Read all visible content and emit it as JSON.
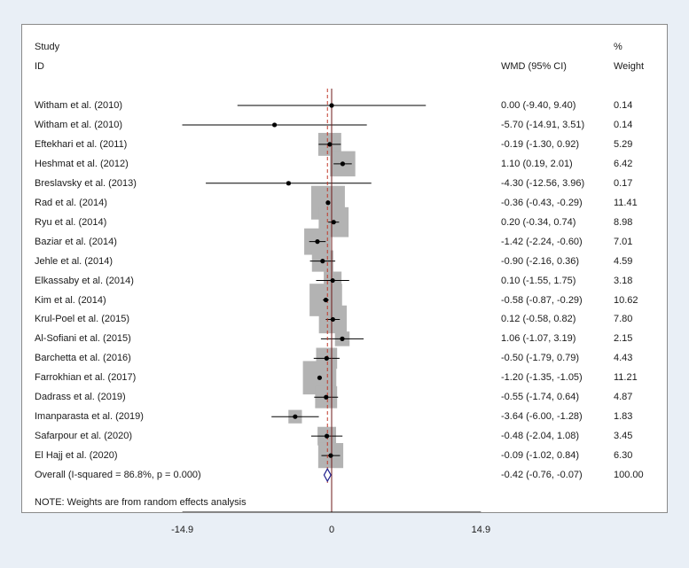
{
  "colors": {
    "background": "#e9eff6",
    "panel": "#ffffff",
    "weight_box": "#b3b3b3",
    "line": "#000000",
    "null_line": "#6e1a1a",
    "overall_line": "#c0392b",
    "diamond": "#1f1f8c"
  },
  "chart_data": {
    "type": "forest",
    "header": {
      "study_line1": "Study",
      "study_line2": "ID",
      "effect_label": "WMD (95% CI)",
      "weight_line1": "%",
      "weight_line2": "Weight"
    },
    "studies": [
      {
        "label": "Witham et al. (2010)",
        "est": 0.0,
        "lo": -9.4,
        "hi": 9.4,
        "ci_text": "0.00 (-9.40, 9.40)",
        "weight": 0.14,
        "weight_text": "0.14"
      },
      {
        "label": "Witham et al. (2010)",
        "est": -5.7,
        "lo": -14.91,
        "hi": 3.51,
        "ci_text": "-5.70 (-14.91, 3.51)",
        "weight": 0.14,
        "weight_text": "0.14"
      },
      {
        "label": "Eftekhari et al. (2011)",
        "est": -0.19,
        "lo": -1.3,
        "hi": 0.92,
        "ci_text": "-0.19 (-1.30, 0.92)",
        "weight": 5.29,
        "weight_text": "5.29"
      },
      {
        "label": "Heshmat et al. (2012)",
        "est": 1.1,
        "lo": 0.19,
        "hi": 2.01,
        "ci_text": "1.10 (0.19, 2.01)",
        "weight": 6.42,
        "weight_text": "6.42"
      },
      {
        "label": "Breslavsky et al. (2013)",
        "est": -4.3,
        "lo": -12.56,
        "hi": 3.96,
        "ci_text": "-4.30 (-12.56, 3.96)",
        "weight": 0.17,
        "weight_text": "0.17"
      },
      {
        "label": "Rad et al. (2014)",
        "est": -0.36,
        "lo": -0.43,
        "hi": -0.29,
        "ci_text": "-0.36 (-0.43, -0.29)",
        "weight": 11.41,
        "weight_text": "11.41"
      },
      {
        "label": "Ryu et al. (2014)",
        "est": 0.2,
        "lo": -0.34,
        "hi": 0.74,
        "ci_text": "0.20 (-0.34, 0.74)",
        "weight": 8.98,
        "weight_text": "8.98"
      },
      {
        "label": "Baziar et al. (2014)",
        "est": -1.42,
        "lo": -2.24,
        "hi": -0.6,
        "ci_text": "-1.42 (-2.24, -0.60)",
        "weight": 7.01,
        "weight_text": "7.01"
      },
      {
        "label": "Jehle et al. (2014)",
        "est": -0.9,
        "lo": -2.16,
        "hi": 0.36,
        "ci_text": "-0.90 (-2.16, 0.36)",
        "weight": 4.59,
        "weight_text": "4.59"
      },
      {
        "label": "Elkassaby et al. (2014)",
        "est": 0.1,
        "lo": -1.55,
        "hi": 1.75,
        "ci_text": "0.10 (-1.55, 1.75)",
        "weight": 3.18,
        "weight_text": "3.18"
      },
      {
        "label": "Kim et al. (2014)",
        "est": -0.58,
        "lo": -0.87,
        "hi": -0.29,
        "ci_text": "-0.58 (-0.87, -0.29)",
        "weight": 10.62,
        "weight_text": "10.62"
      },
      {
        "label": "Krul-Poel et al. (2015)",
        "est": 0.12,
        "lo": -0.58,
        "hi": 0.82,
        "ci_text": "0.12 (-0.58, 0.82)",
        "weight": 7.8,
        "weight_text": "7.80"
      },
      {
        "label": "Al-Sofiani et al. (2015)",
        "est": 1.06,
        "lo": -1.07,
        "hi": 3.19,
        "ci_text": "1.06 (-1.07, 3.19)",
        "weight": 2.15,
        "weight_text": "2.15"
      },
      {
        "label": "Barchetta et al. (2016)",
        "est": -0.5,
        "lo": -1.79,
        "hi": 0.79,
        "ci_text": "-0.50 (-1.79, 0.79)",
        "weight": 4.43,
        "weight_text": "4.43"
      },
      {
        "label": "Farrokhian et al. (2017)",
        "est": -1.2,
        "lo": -1.35,
        "hi": -1.05,
        "ci_text": "-1.20 (-1.35, -1.05)",
        "weight": 11.21,
        "weight_text": "11.21"
      },
      {
        "label": "Dadrass et al. (2019)",
        "est": -0.55,
        "lo": -1.74,
        "hi": 0.64,
        "ci_text": "-0.55 (-1.74, 0.64)",
        "weight": 4.87,
        "weight_text": "4.87"
      },
      {
        "label": "Imanparasta et al. (2019)",
        "est": -3.64,
        "lo": -6.0,
        "hi": -1.28,
        "ci_text": "-3.64 (-6.00, -1.28)",
        "weight": 1.83,
        "weight_text": "1.83"
      },
      {
        "label": "Safarpour et al. (2020)",
        "est": -0.48,
        "lo": -2.04,
        "hi": 1.08,
        "ci_text": "-0.48 (-2.04, 1.08)",
        "weight": 3.45,
        "weight_text": "3.45"
      },
      {
        "label": "El Hajj et al. (2020)",
        "est": -0.09,
        "lo": -1.02,
        "hi": 0.84,
        "ci_text": "-0.09 (-1.02, 0.84)",
        "weight": 6.3,
        "weight_text": "6.30"
      }
    ],
    "overall": {
      "label": "Overall  (I-squared = 86.8%, p = 0.000)",
      "est": -0.42,
      "lo": -0.76,
      "hi": -0.07,
      "ci_text": "-0.42 (-0.76, -0.07)",
      "weight_text": "100.00"
    },
    "note": "NOTE: Weights are from random effects analysis",
    "x_ticks": [
      {
        "value": -14.9,
        "label": "-14.9"
      },
      {
        "value": 0,
        "label": "0"
      },
      {
        "value": 14.9,
        "label": "14.9"
      }
    ],
    "xlim": [
      -14.9,
      14.9
    ]
  }
}
